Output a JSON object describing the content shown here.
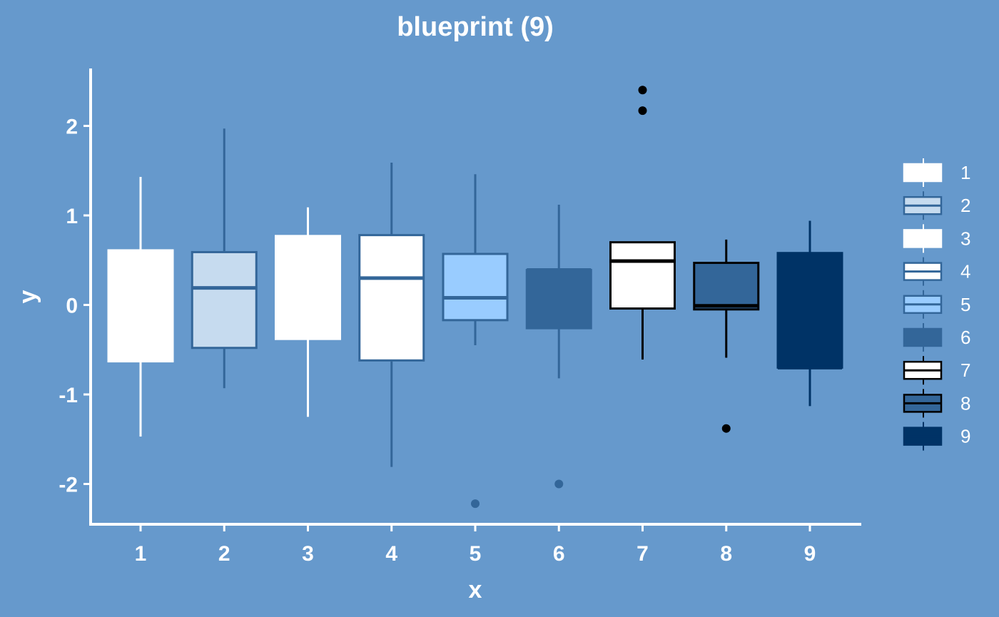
{
  "chart_data": {
    "type": "box",
    "title": "blueprint (9)",
    "xlabel": "x",
    "ylabel": "y",
    "categories": [
      "1",
      "2",
      "3",
      "4",
      "5",
      "6",
      "7",
      "8",
      "9"
    ],
    "ylim": [
      -2.4,
      2.65
    ],
    "yticks": [
      -2,
      -1,
      0,
      1,
      2
    ],
    "ytick_labels": [
      "-2",
      "-1",
      "0",
      "1",
      "2"
    ],
    "grid": false,
    "legend_position": "right",
    "legend_entries": [
      "1",
      "2",
      "3",
      "4",
      "5",
      "6",
      "7",
      "8",
      "9"
    ],
    "boxes": [
      {
        "category": "1",
        "whisker_low": -1.47,
        "q1": -0.63,
        "median": 0.6,
        "q3": 0.61,
        "whisker_high": 1.43,
        "outliers": [],
        "fill": "#ffffff",
        "line": "#ffffff"
      },
      {
        "category": "2",
        "whisker_low": -0.93,
        "q1": -0.48,
        "median": 0.19,
        "q3": 0.59,
        "whisker_high": 1.97,
        "outliers": [],
        "fill": "#c6dbef",
        "line": "#336699"
      },
      {
        "category": "3",
        "whisker_low": -1.25,
        "q1": -0.38,
        "median": 0.76,
        "q3": 0.77,
        "whisker_high": 1.09,
        "outliers": [],
        "fill": "#ffffff",
        "line": "#ffffff"
      },
      {
        "category": "4",
        "whisker_low": -1.81,
        "q1": -0.62,
        "median": 0.3,
        "q3": 0.78,
        "whisker_high": 1.59,
        "outliers": [],
        "fill": "#ffffff",
        "line": "#336699"
      },
      {
        "category": "5",
        "whisker_low": -0.45,
        "q1": -0.17,
        "median": 0.08,
        "q3": 0.57,
        "whisker_high": 1.46,
        "outliers": [
          -2.22
        ],
        "fill": "#99ccff",
        "line": "#336699"
      },
      {
        "category": "6",
        "whisker_low": -0.82,
        "q1": -0.26,
        "median": 0.39,
        "q3": 0.39,
        "whisker_high": 1.12,
        "outliers": [
          -2.0
        ],
        "fill": "#336699",
        "line": "#336699"
      },
      {
        "category": "7",
        "whisker_low": -0.61,
        "q1": -0.04,
        "median": 0.49,
        "q3": 0.7,
        "whisker_high": 0.7,
        "outliers": [
          2.4,
          2.17
        ],
        "fill": "#ffffff",
        "line": "#000000"
      },
      {
        "category": "8",
        "whisker_low": -0.59,
        "q1": -0.05,
        "median": -0.01,
        "q3": 0.47,
        "whisker_high": 0.73,
        "outliers": [
          -1.38
        ],
        "fill": "#336699",
        "line": "#000000"
      },
      {
        "category": "9",
        "whisker_low": -1.13,
        "q1": -0.7,
        "median": -0.7,
        "q3": 0.58,
        "whisker_high": 0.94,
        "outliers": [],
        "fill": "#003366",
        "line": "#003366"
      }
    ],
    "colors": {
      "background": "#6699cc",
      "axis": "#ffffff",
      "text": "#ffffff"
    }
  }
}
